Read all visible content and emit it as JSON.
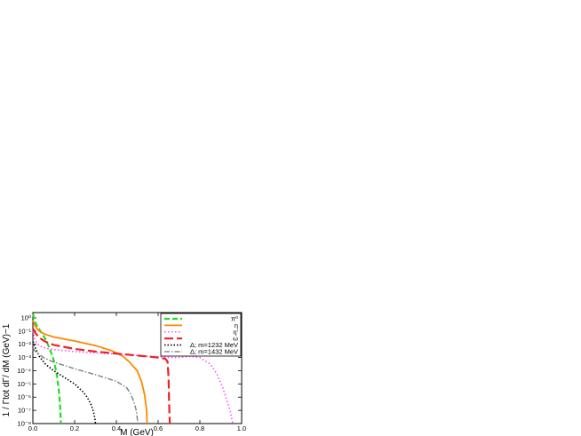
{
  "chart_data": {
    "type": "line",
    "xlabel": "M (GeV)",
    "ylabel": "1 / Γtot dΓ/ dM (GeV)−1",
    "x_ticks": [
      "0.0",
      "0.2",
      "0.4",
      "0.6",
      "0.8",
      "1.0"
    ],
    "y_ticks": [
      "10⁰",
      "10⁻¹",
      "10⁻²",
      "10⁻³",
      "10⁻⁴",
      "10⁻⁵",
      "10⁻⁶",
      "10⁻⁷",
      "10⁻⁸"
    ],
    "xlim": [
      0,
      1
    ],
    "ylim_log10": [
      -8,
      0.4
    ],
    "y_scale": "log",
    "legend_position": "top-right",
    "series": [
      {
        "name": "π⁰",
        "color": "#22dd22",
        "dash": "6,3",
        "width": 2.2,
        "x": [
          0.001,
          0.005,
          0.01,
          0.02,
          0.04,
          0.06,
          0.08,
          0.1,
          0.115,
          0.125,
          0.13,
          0.132,
          0.1345
        ],
        "y_log": [
          0.3,
          0.0,
          -0.3,
          -0.6,
          -1.1,
          -1.6,
          -2.3,
          -3.2,
          -4.3,
          -5.6,
          -6.6,
          -7.2,
          -8
        ]
      },
      {
        "name": "η",
        "color": "#ff8800",
        "dash": "",
        "width": 1.8,
        "x": [
          0.001,
          0.01,
          0.03,
          0.06,
          0.1,
          0.2,
          0.3,
          0.38,
          0.43,
          0.46,
          0.5,
          0.52,
          0.535,
          0.545,
          0.547
        ],
        "y_log": [
          -0.2,
          -0.6,
          -1.0,
          -1.25,
          -1.45,
          -1.75,
          -2.1,
          -2.5,
          -2.9,
          -3.3,
          -4.0,
          -4.8,
          -5.8,
          -7.0,
          -8
        ]
      },
      {
        "name": "η'",
        "color": "#ff44ff",
        "dash": "1.5,2.5",
        "width": 1.5,
        "x": [
          0.001,
          0.01,
          0.03,
          0.06,
          0.1,
          0.2,
          0.3,
          0.4,
          0.5,
          0.6,
          0.65,
          0.7,
          0.75,
          0.8,
          0.85,
          0.88,
          0.91,
          0.93,
          0.945,
          0.955,
          0.957
        ],
        "y_log": [
          -1.0,
          -1.7,
          -2.1,
          -2.3,
          -2.4,
          -2.55,
          -2.65,
          -2.75,
          -2.85,
          -2.95,
          -3.0,
          -3.0,
          -2.9,
          -3.0,
          -3.5,
          -4.2,
          -5.3,
          -6.3,
          -7.0,
          -7.8,
          -8
        ]
      },
      {
        "name": "ω",
        "color": "#ee2222",
        "dash": "10,4",
        "width": 2.2,
        "x": [
          0.001,
          0.01,
          0.03,
          0.06,
          0.1,
          0.2,
          0.3,
          0.4,
          0.5,
          0.6,
          0.635,
          0.645,
          0.65,
          0.652,
          0.654,
          0.656
        ],
        "y_log": [
          -0.8,
          -1.1,
          -1.5,
          -1.8,
          -2.05,
          -2.35,
          -2.55,
          -2.7,
          -2.85,
          -3.0,
          -3.1,
          -3.3,
          -4.5,
          -6.0,
          -7.2,
          -8
        ]
      },
      {
        "name": "Δ; m=1232 MeV",
        "color": "#000000",
        "dash": "1.5,2",
        "width": 1.6,
        "x": [
          0.001,
          0.01,
          0.03,
          0.06,
          0.1,
          0.15,
          0.2,
          0.24,
          0.26,
          0.28,
          0.29,
          0.297,
          0.3
        ],
        "y_log": [
          -1.8,
          -2.2,
          -2.9,
          -3.5,
          -4.0,
          -4.5,
          -5.0,
          -5.6,
          -6.0,
          -6.6,
          -7.1,
          -7.6,
          -8
        ]
      },
      {
        "name": "Δ; m=1432 MeV",
        "color": "#888888",
        "dash": "6,2,1.5,2",
        "width": 1.5,
        "x": [
          0.001,
          0.01,
          0.05,
          0.1,
          0.2,
          0.3,
          0.4,
          0.45,
          0.47,
          0.485,
          0.495,
          0.5,
          0.503
        ],
        "y_log": [
          -2.3,
          -2.5,
          -3.0,
          -3.35,
          -3.85,
          -4.3,
          -4.8,
          -5.3,
          -5.8,
          -6.4,
          -7.0,
          -7.6,
          -8
        ]
      }
    ]
  }
}
